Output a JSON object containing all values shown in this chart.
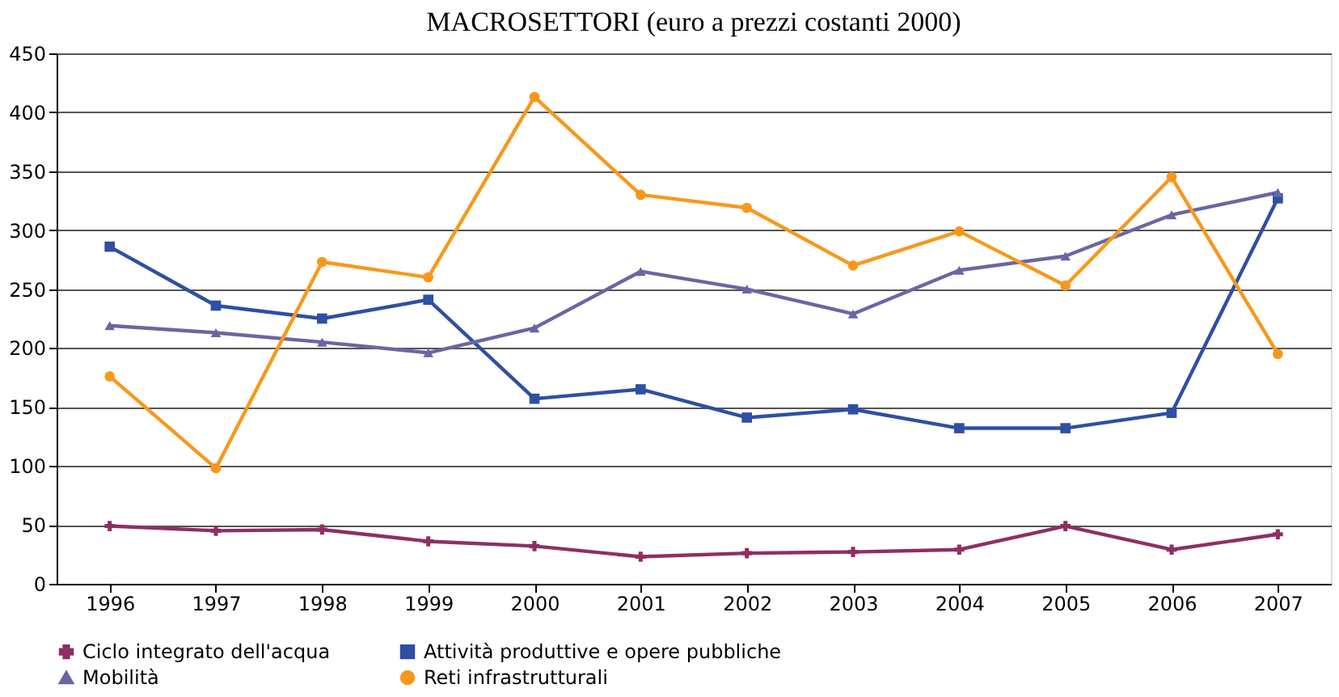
{
  "chart_data": {
    "type": "line",
    "title": "MACROSETTORI (euro a prezzi costanti 2000)",
    "categories": [
      "1996",
      "1997",
      "1998",
      "1999",
      "2000",
      "2001",
      "2002",
      "2003",
      "2004",
      "2005",
      "2006",
      "2007"
    ],
    "series": [
      {
        "name": "Ciclo integrato dell'acqua",
        "color": "#8e2f63",
        "marker": "cross",
        "values": [
          49,
          45,
          46,
          36,
          32,
          23,
          26,
          27,
          29,
          49,
          29,
          42
        ]
      },
      {
        "name": "Attività produttive e opere pubbliche",
        "color": "#2e4fa3",
        "marker": "square",
        "values": [
          286,
          236,
          225,
          241,
          157,
          165,
          141,
          148,
          132,
          132,
          145,
          327
        ]
      },
      {
        "name": "Mobilità",
        "color": "#6a66a3",
        "marker": "triangle",
        "values": [
          219,
          213,
          205,
          196,
          217,
          265,
          250,
          229,
          266,
          278,
          313,
          332
        ]
      },
      {
        "name": "Reti infrastrutturali",
        "color": "#f7981d",
        "marker": "circle",
        "values": [
          176,
          98,
          273,
          260,
          413,
          330,
          319,
          270,
          299,
          253,
          345,
          195
        ]
      }
    ],
    "ylim": [
      0,
      450
    ],
    "yticks": [
      0,
      50,
      100,
      150,
      200,
      250,
      300,
      350,
      400,
      450
    ],
    "grid": "y",
    "legend": "bottom",
    "line_style": "solid"
  }
}
